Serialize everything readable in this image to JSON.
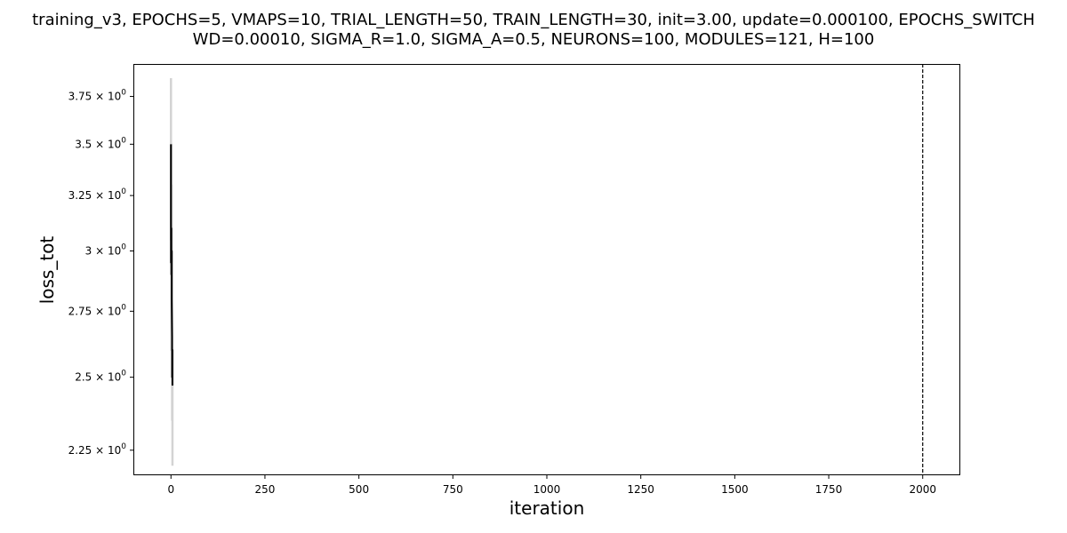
{
  "chart_data": {
    "type": "line",
    "title_lines": [
      "training_v3, EPOCHS=5, VMAPS=10, TRIAL_LENGTH=50, TRAIN_LENGTH=30, init=3.00, update=0.000100, EPOCHS_SWITCH",
      "WD=0.00010, SIGMA_R=1.0, SIGMA_A=0.5, NEURONS=100, MODULES=121, H=100"
    ],
    "xlabel": "iteration",
    "ylabel": "loss_tot",
    "xlim": [
      -100,
      2100
    ],
    "ylim": [
      2.17,
      3.93
    ],
    "yscale": "log",
    "grid": false,
    "x_ticks": [
      0,
      250,
      500,
      750,
      1000,
      1250,
      1500,
      1750,
      2000
    ],
    "x_tick_labels": [
      "0",
      "250",
      "500",
      "750",
      "1000",
      "1250",
      "1500",
      "1750",
      "2000"
    ],
    "y_ticks": [
      2.25,
      2.5,
      2.75,
      3.0,
      3.25,
      3.5,
      3.75
    ],
    "y_tick_labels": [
      {
        "mant": "2.25",
        "exp": "0"
      },
      {
        "mant": "2.5",
        "exp": "0"
      },
      {
        "mant": "2.75",
        "exp": "0"
      },
      {
        "mant": "3",
        "exp": "0"
      },
      {
        "mant": "3.25",
        "exp": "0"
      },
      {
        "mant": "3.5",
        "exp": "0"
      },
      {
        "mant": "3.75",
        "exp": "0"
      }
    ],
    "vline": {
      "x": 2000,
      "style": "dashed",
      "color": "#000000"
    },
    "series": [
      {
        "role": "raw",
        "color": "#d3d3d3",
        "x": [
          0,
          0,
          1,
          1,
          2,
          2,
          3,
          3,
          4,
          4
        ],
        "y": [
          3.85,
          3.05,
          3.5,
          2.6,
          3.3,
          2.7,
          3.0,
          2.35,
          2.6,
          2.2
        ]
      },
      {
        "role": "smoothed",
        "color": "#000000",
        "x": [
          0,
          0,
          1,
          1,
          2,
          2,
          3,
          3,
          4,
          4
        ],
        "y": [
          3.5,
          2.95,
          3.1,
          2.9,
          3.0,
          2.8,
          2.65,
          2.5,
          2.6,
          2.47
        ]
      }
    ]
  }
}
